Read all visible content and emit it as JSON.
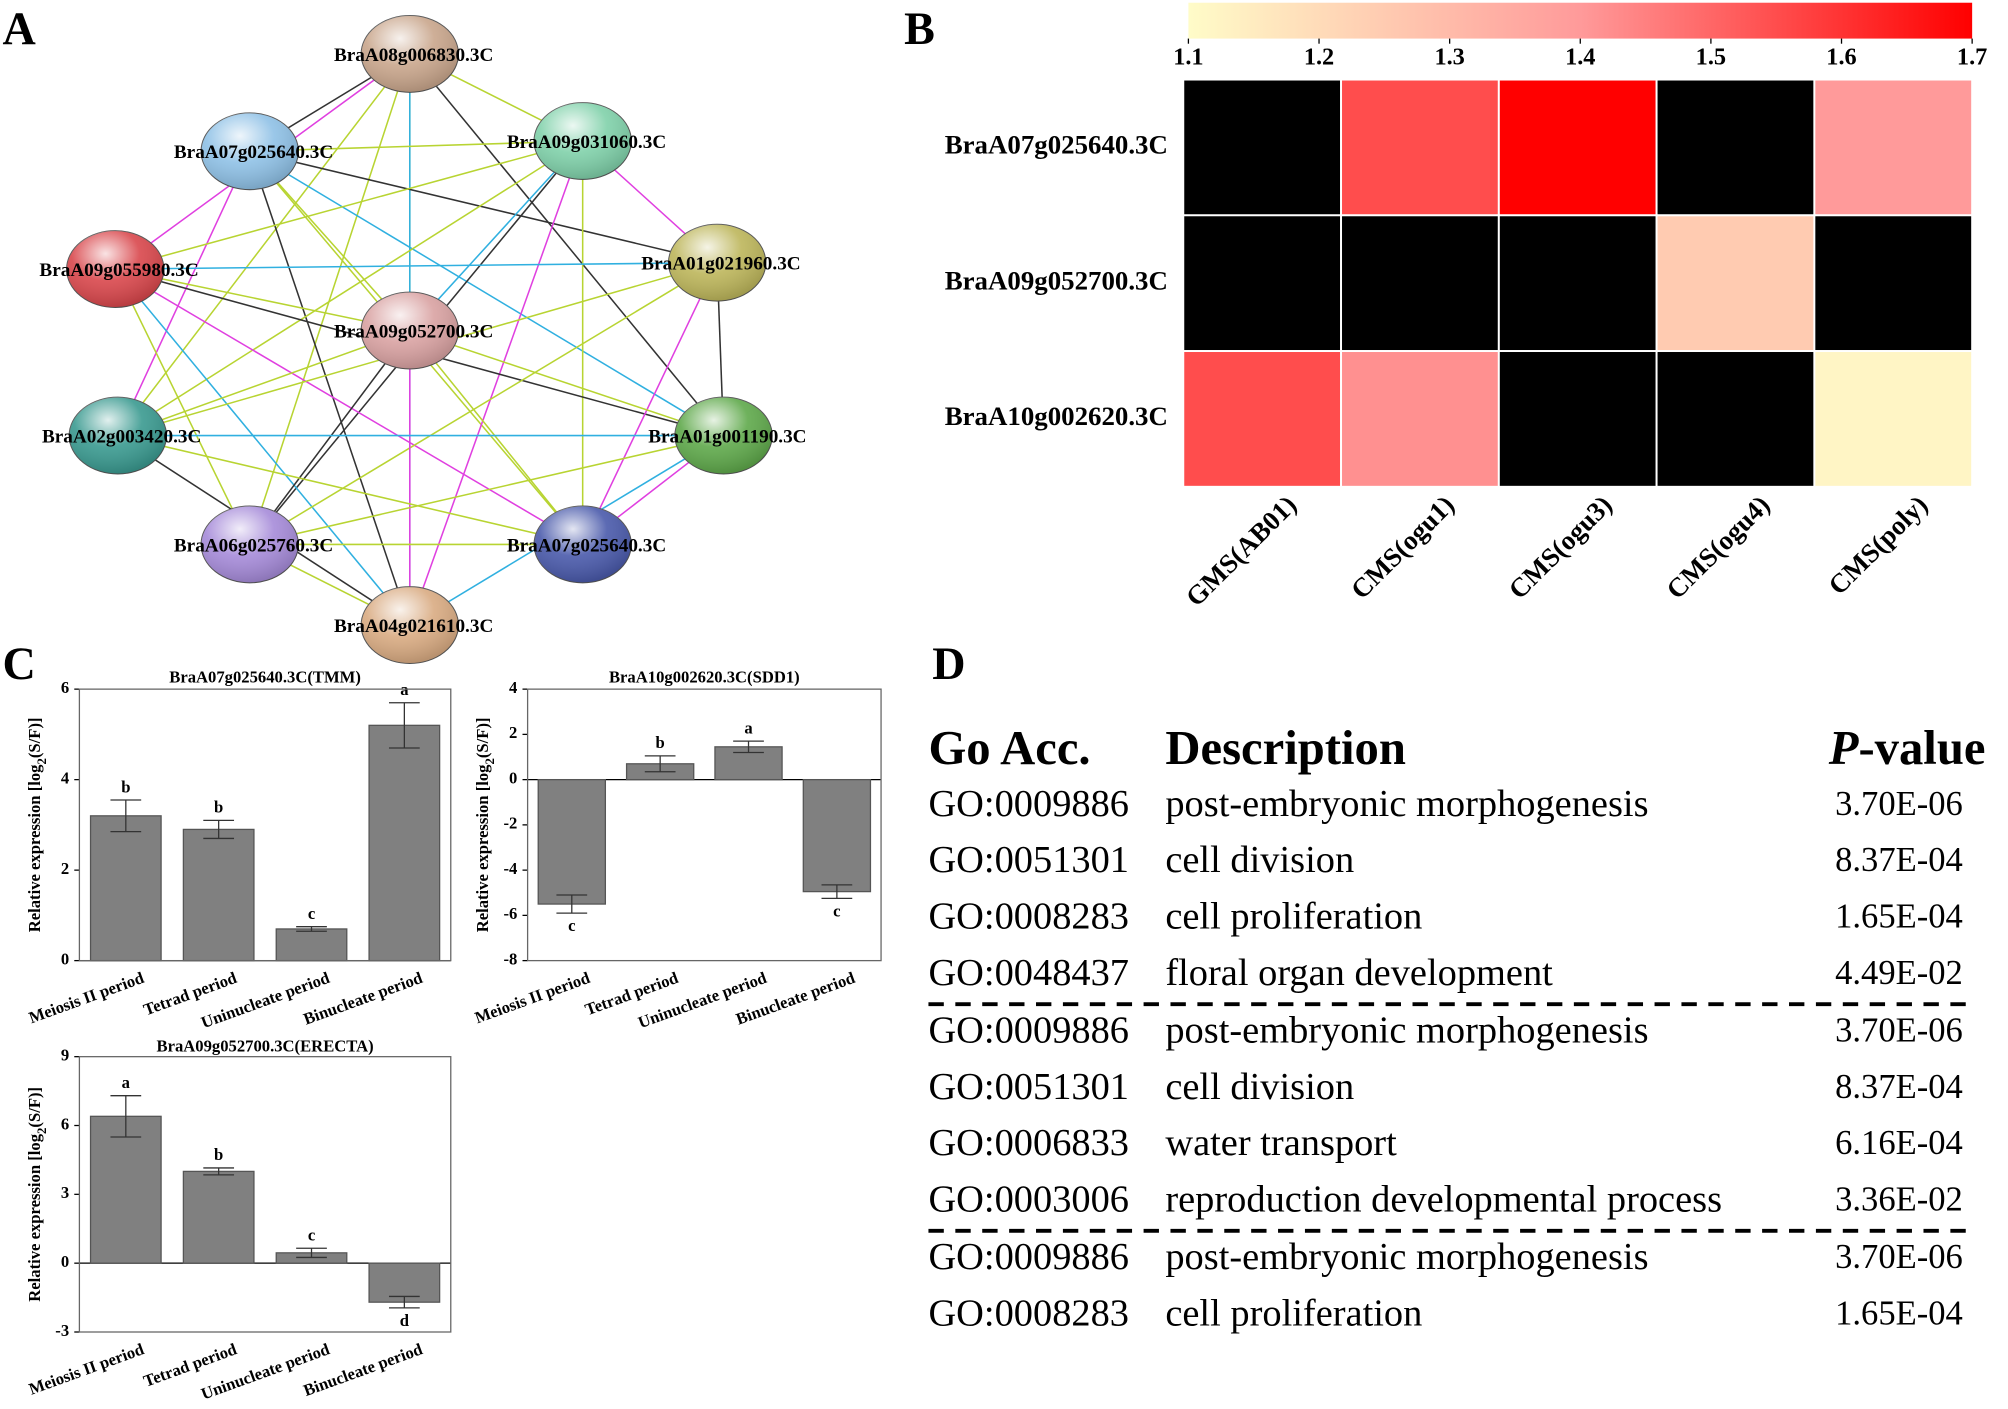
{
  "panel_labels": [
    "A",
    "B",
    "C",
    "D"
  ],
  "network": {
    "nodes": [
      {
        "label": "BraA08g006830.3C",
        "color": "#c9a68c"
      },
      {
        "label": "BraA07g025640.3C",
        "color": "#8fc1e6"
      },
      {
        "label": "BraA09g031060.3C",
        "color": "#80d1aa"
      },
      {
        "label": "BraA09g055980.3C",
        "color": "#d9474c"
      },
      {
        "label": "BraA01g021960.3C",
        "color": "#bdb65b"
      },
      {
        "label": "BraA09g052700.3C",
        "color": "#d9a2a2"
      },
      {
        "label": "BraA02g003420.3C",
        "color": "#3a9a90"
      },
      {
        "label": "BraA01g001190.3C",
        "color": "#5fa94b"
      },
      {
        "label": "BraA06g025760.3C",
        "color": "#a68bd9"
      },
      {
        "label": "BraA07g025640.3C",
        "color": "#4a5aab"
      },
      {
        "label": "BraA04g021610.3C",
        "color": "#d9ab82"
      }
    ]
  },
  "chart_data": [
    {
      "type": "heatmap",
      "rows": [
        "BraA07g025640.3C",
        "BraA09g052700.3C",
        "BraA10g002620.3C"
      ],
      "columns": [
        "GMS(AB01)",
        "CMS(ogu1)",
        "CMS(ogu3)",
        "CMS(ogu4)",
        "CMS(poly)"
      ],
      "values": [
        [
          null,
          1.55,
          1.7,
          null,
          1.4
        ],
        [
          null,
          null,
          null,
          1.25,
          null
        ],
        [
          1.55,
          1.42,
          null,
          null,
          1.12
        ]
      ],
      "colors": [
        "#fffcc8",
        "#ff9a9a",
        "#ff0000"
      ],
      "na_color": "#000000",
      "clim": [
        1.1,
        1.7
      ],
      "cticks": [
        1.1,
        1.2,
        1.3,
        1.4,
        1.5,
        1.6,
        1.7
      ]
    },
    {
      "type": "bar",
      "title": "BraA07g025640.3C(TMM)",
      "ylabel": [
        "Relative expression [log",
        "2",
        "(S/F)]"
      ],
      "categories": [
        "Meiosis II period",
        "Tetrad period",
        "Uninucleate period",
        "Binucleate period"
      ],
      "values": [
        3.2,
        2.9,
        0.7,
        5.2
      ],
      "errors": [
        0.35,
        0.2,
        0.05,
        0.5
      ],
      "annotations": [
        "b",
        "b",
        "c",
        "a"
      ],
      "color": "#808080",
      "ylim": [
        0,
        6
      ],
      "yticks": [
        0,
        2,
        4,
        6
      ]
    },
    {
      "type": "bar",
      "title": "BraA10g002620.3C(SDD1)",
      "ylabel": [
        "Relative expression [log",
        "2",
        "(S/F)]"
      ],
      "categories": [
        "Meiosis II period",
        "Tetrad period",
        "Uninucleate period",
        "Binucleate period"
      ],
      "values": [
        -5.5,
        0.7,
        1.45,
        -4.95
      ],
      "errors": [
        0.4,
        0.35,
        0.25,
        0.3
      ],
      "annotations": [
        "c",
        "b",
        "a",
        "c"
      ],
      "color": "#808080",
      "ylim": [
        -8,
        4
      ],
      "yticks": [
        -8,
        -6,
        -4,
        -2,
        0,
        2,
        4
      ]
    },
    {
      "type": "bar",
      "title": "BraA09g052700.3C(ERECTA)",
      "ylabel": [
        "Relative expression [log",
        "2",
        "(S/F)]"
      ],
      "categories": [
        "Meiosis II period",
        "Tetrad period",
        "Uninucleate period",
        "Binucleate period"
      ],
      "values": [
        6.4,
        4.0,
        0.45,
        -1.7
      ],
      "errors": [
        0.9,
        0.15,
        0.2,
        0.25
      ],
      "annotations": [
        "a",
        "b",
        "c",
        "d"
      ],
      "color": "#808080",
      "ylim": [
        -3,
        9
      ],
      "yticks": [
        -3,
        0,
        3,
        6,
        9
      ]
    }
  ],
  "table": {
    "header": [
      [
        "Go Acc."
      ],
      [
        "Description"
      ],
      [
        "P",
        "-value"
      ]
    ],
    "groups": [
      [
        [
          "GO:0009886",
          "post-embryonic morphogenesis",
          "3.70E-06"
        ],
        [
          "GO:0051301",
          "cell division",
          "8.37E-04"
        ],
        [
          "GO:0008283",
          "cell proliferation",
          "1.65E-04"
        ],
        [
          "GO:0048437",
          "floral organ development",
          "4.49E-02"
        ]
      ],
      [
        [
          "GO:0009886",
          "post-embryonic morphogenesis",
          "3.70E-06"
        ],
        [
          "GO:0051301",
          "cell division",
          "8.37E-04"
        ],
        [
          "GO:0006833",
          "water transport",
          "6.16E-04"
        ],
        [
          "GO:0003006",
          "reproduction developmental process",
          "3.36E-02"
        ]
      ],
      [
        [
          "GO:0009886",
          "post-embryonic morphogenesis",
          "3.70E-06"
        ],
        [
          "GO:0008283",
          "cell proliferation",
          "1.65E-04"
        ]
      ]
    ]
  }
}
